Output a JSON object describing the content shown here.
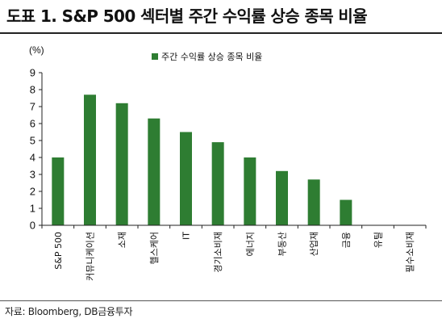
{
  "header": {
    "title": "도표 1. S&P 500 섹터별 주간 수익률 상승 종목 비율"
  },
  "footer": {
    "source": "자료: Bloomberg, DB금융투자"
  },
  "chart_data": {
    "type": "bar",
    "unit_label": "(%)",
    "categories": [
      "S&P 500",
      "커뮤니케이션",
      "소재",
      "헬스케어",
      "IT",
      "경기소비재",
      "에너지",
      "부동산",
      "산업재",
      "금융",
      "유틸",
      "필수소비재"
    ],
    "series": [
      {
        "name": "주간 수익률 상승 종목 비율",
        "values": [
          4.0,
          7.7,
          7.2,
          6.3,
          5.5,
          4.9,
          4.0,
          3.2,
          2.7,
          1.5,
          0.0,
          0.0
        ]
      }
    ],
    "ylim": [
      0,
      9
    ],
    "yticks": [
      0,
      1,
      2,
      3,
      4,
      5,
      6,
      7,
      8,
      9
    ],
    "legend_position": "top",
    "colors": {
      "bar": "#2e7d32",
      "axis": "#222222"
    },
    "grid": false
  }
}
